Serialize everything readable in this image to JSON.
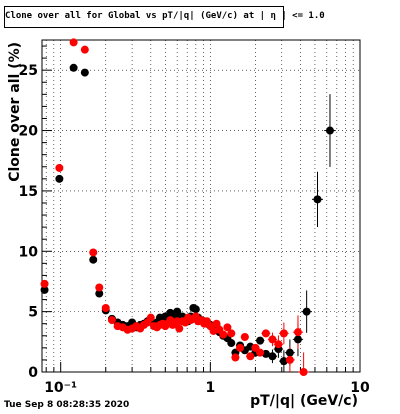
{
  "title": "Clone  over all for Global vs pT/|q| (GeV/c) at |  η | <= 1.0",
  "timestamp": "Tue Sep  8 08:28:35 2020",
  "chart_data": {
    "type": "scatter",
    "xlabel": "pT/|q| (GeV/c)",
    "ylabel": "Clone  over all (%)",
    "xscale": "log",
    "xlim": [
      0.075,
      10
    ],
    "ylim": [
      0,
      27.5
    ],
    "grid": true,
    "xticks": [
      {
        "v": 0.1,
        "label": "10⁻¹"
      },
      {
        "v": 1,
        "label": "1"
      },
      {
        "v": 10,
        "label": "10"
      }
    ],
    "yticks": [
      0,
      5,
      10,
      15,
      20,
      25
    ],
    "series": [
      {
        "color": "#000000",
        "points": [
          [
            0.078,
            6.8
          ],
          [
            0.098,
            16.0
          ],
          [
            0.122,
            25.2
          ],
          [
            0.145,
            24.8
          ],
          [
            0.165,
            9.3
          ],
          [
            0.181,
            6.5
          ],
          [
            0.2,
            5.1
          ],
          [
            0.22,
            4.4
          ],
          [
            0.24,
            4.1
          ],
          [
            0.26,
            3.9
          ],
          [
            0.28,
            3.8
          ],
          [
            0.3,
            4.1
          ],
          [
            0.32,
            3.7
          ],
          [
            0.34,
            3.9
          ],
          [
            0.36,
            4.0
          ],
          [
            0.38,
            4.2
          ],
          [
            0.4,
            4.2
          ],
          [
            0.42,
            3.9
          ],
          [
            0.44,
            4.1
          ],
          [
            0.46,
            4.5
          ],
          [
            0.48,
            4.4
          ],
          [
            0.5,
            4.6
          ],
          [
            0.52,
            4.4
          ],
          [
            0.54,
            4.9
          ],
          [
            0.56,
            4.5
          ],
          [
            0.58,
            4.7
          ],
          [
            0.6,
            5.0
          ],
          [
            0.62,
            4.3
          ],
          [
            0.65,
            4.6
          ],
          [
            0.68,
            4.4
          ],
          [
            0.71,
            4.2
          ],
          [
            0.74,
            4.6
          ],
          [
            0.77,
            5.3
          ],
          [
            0.8,
            5.2
          ],
          [
            0.83,
            4.5
          ],
          [
            0.87,
            4.3
          ],
          [
            0.91,
            4.2
          ],
          [
            0.95,
            4.0
          ],
          [
            1.0,
            3.9
          ],
          [
            1.05,
            3.6
          ],
          [
            1.1,
            3.8
          ],
          [
            1.15,
            3.3
          ],
          [
            1.22,
            3.0
          ],
          [
            1.3,
            2.8
          ],
          [
            1.38,
            2.4
          ],
          [
            1.47,
            1.6
          ],
          [
            1.58,
            2.2
          ],
          [
            1.7,
            1.8
          ],
          [
            1.85,
            2.1
          ],
          [
            2.0,
            1.6
          ],
          [
            2.15,
            2.6
          ],
          [
            2.35,
            1.5
          ],
          [
            2.6,
            1.3
          ],
          [
            2.85,
            1.9
          ],
          [
            3.1,
            0.9
          ],
          [
            3.4,
            1.6
          ],
          [
            3.85,
            2.7
          ],
          [
            4.4,
            5.0
          ],
          [
            5.2,
            14.3
          ],
          [
            6.3,
            20.0
          ]
        ]
      },
      {
        "color": "#ff0000",
        "points": [
          [
            0.078,
            7.3
          ],
          [
            0.098,
            16.9
          ],
          [
            0.122,
            27.3
          ],
          [
            0.145,
            26.7
          ],
          [
            0.165,
            9.9
          ],
          [
            0.181,
            7.0
          ],
          [
            0.2,
            5.3
          ],
          [
            0.22,
            4.3
          ],
          [
            0.24,
            3.8
          ],
          [
            0.26,
            3.7
          ],
          [
            0.28,
            3.5
          ],
          [
            0.3,
            3.6
          ],
          [
            0.32,
            3.8
          ],
          [
            0.34,
            3.6
          ],
          [
            0.36,
            3.9
          ],
          [
            0.38,
            4.1
          ],
          [
            0.4,
            4.5
          ],
          [
            0.42,
            3.8
          ],
          [
            0.44,
            3.7
          ],
          [
            0.46,
            3.9
          ],
          [
            0.48,
            4.0
          ],
          [
            0.5,
            3.8
          ],
          [
            0.52,
            4.0
          ],
          [
            0.54,
            4.3
          ],
          [
            0.56,
            3.9
          ],
          [
            0.58,
            4.1
          ],
          [
            0.6,
            4.2
          ],
          [
            0.62,
            3.6
          ],
          [
            0.65,
            4.2
          ],
          [
            0.68,
            4.1
          ],
          [
            0.71,
            4.5
          ],
          [
            0.74,
            4.3
          ],
          [
            0.77,
            4.4
          ],
          [
            0.8,
            4.6
          ],
          [
            0.83,
            4.2
          ],
          [
            0.87,
            4.3
          ],
          [
            0.91,
            4.0
          ],
          [
            0.95,
            4.2
          ],
          [
            1.0,
            3.8
          ],
          [
            1.05,
            3.4
          ],
          [
            1.1,
            4.0
          ],
          [
            1.15,
            3.5
          ],
          [
            1.22,
            3.1
          ],
          [
            1.3,
            3.7
          ],
          [
            1.38,
            3.2
          ],
          [
            1.47,
            1.2
          ],
          [
            1.58,
            2.0
          ],
          [
            1.7,
            2.9
          ],
          [
            1.85,
            1.3
          ],
          [
            2.0,
            2.0
          ],
          [
            2.15,
            1.6
          ],
          [
            2.35,
            3.2
          ],
          [
            2.6,
            2.7
          ],
          [
            2.85,
            2.3
          ],
          [
            3.1,
            3.2
          ],
          [
            3.4,
            1.0
          ],
          [
            3.85,
            3.3
          ],
          [
            4.2,
            0.0
          ]
        ]
      }
    ]
  }
}
